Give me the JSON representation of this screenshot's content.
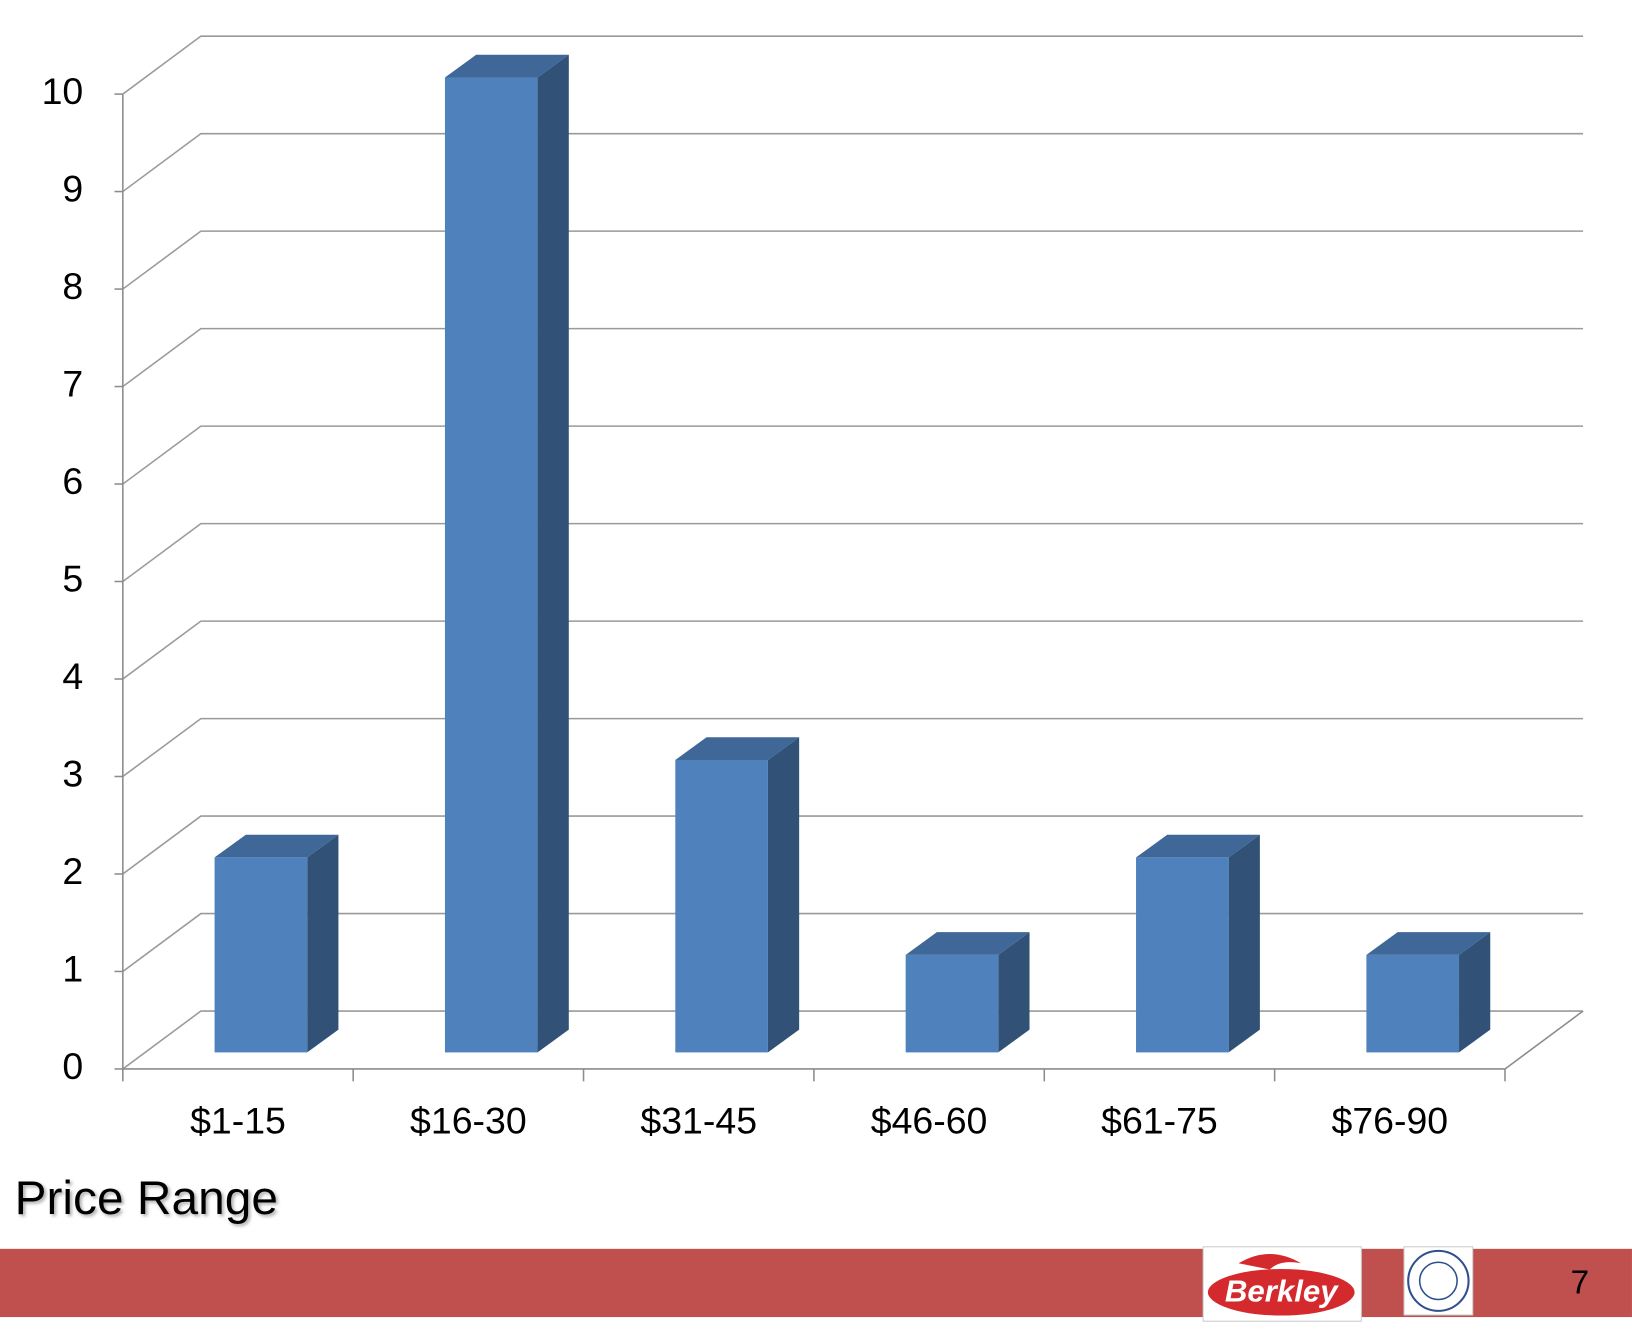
{
  "title": "Price Range",
  "page_number": "7",
  "footer_logo": "Berkley",
  "chart_data": {
    "type": "bar",
    "categories": [
      "$1-15",
      "$16-30",
      "$31-45",
      "$46-60",
      "$61-75",
      "$76-90"
    ],
    "values": [
      2,
      10,
      3,
      1,
      2,
      1
    ],
    "color": "#4f81bd",
    "ylim": [
      0,
      10
    ],
    "yticks": [
      0,
      1,
      2,
      3,
      4,
      5,
      6,
      7,
      8,
      9,
      10
    ],
    "grid": true
  }
}
